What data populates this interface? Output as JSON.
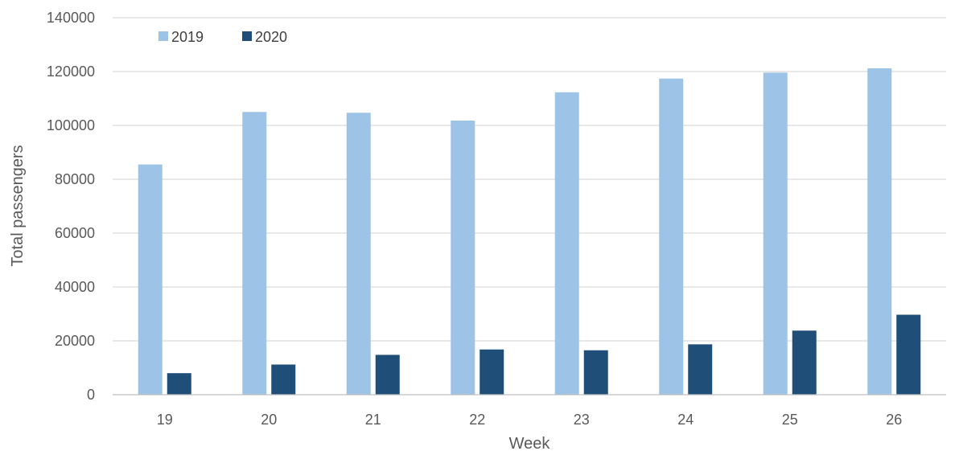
{
  "chart_data": {
    "type": "bar",
    "title": "",
    "xlabel": "Week",
    "ylabel": "Total passengers",
    "categories": [
      "19",
      "20",
      "21",
      "22",
      "23",
      "24",
      "25",
      "26"
    ],
    "ylim": [
      0,
      140000
    ],
    "yticks": [
      "0",
      "20000",
      "40000",
      "60000",
      "80000",
      "100000",
      "120000",
      "140000"
    ],
    "grid": true,
    "legend_position": "top-left",
    "series": [
      {
        "name": "2019",
        "color": "#9dc3e6",
        "values": [
          85500,
          105000,
          104700,
          101800,
          112300,
          117400,
          119600,
          121200
        ]
      },
      {
        "name": "2020",
        "color": "#1f4e79",
        "values": [
          8000,
          11200,
          14800,
          16800,
          16500,
          18700,
          23800,
          29700
        ]
      }
    ]
  }
}
